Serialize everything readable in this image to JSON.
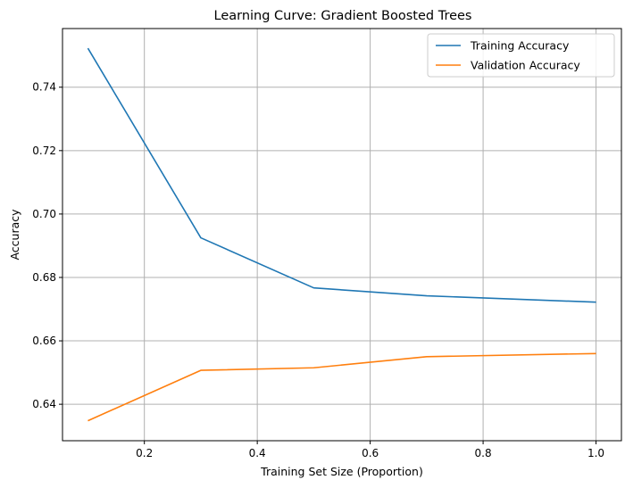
{
  "chart_data": {
    "type": "line",
    "title": "Learning Curve: Gradient Boosted Trees",
    "xlabel": "Training Set Size (Proportion)",
    "ylabel": "Accuracy",
    "xlim": [
      0.055,
      1.045
    ],
    "ylim": [
      0.6285,
      0.7585
    ],
    "xticks": [
      0.2,
      0.4,
      0.6,
      0.8,
      1.0
    ],
    "xtick_labels": [
      "0.2",
      "0.4",
      "0.6",
      "0.8",
      "1.0"
    ],
    "yticks": [
      0.64,
      0.66,
      0.68,
      0.7,
      0.72,
      0.74
    ],
    "ytick_labels": [
      "0.64",
      "0.66",
      "0.68",
      "0.70",
      "0.72",
      "0.74"
    ],
    "grid": true,
    "legend_position": "top-right",
    "x": [
      0.1,
      0.3,
      0.5,
      0.7,
      1.0
    ],
    "series": [
      {
        "name": "Training Accuracy",
        "color": "#1f77b4",
        "values": [
          0.7523,
          0.6925,
          0.6767,
          0.6742,
          0.6722
        ]
      },
      {
        "name": "Validation Accuracy",
        "color": "#ff7f0e",
        "values": [
          0.6348,
          0.6507,
          0.6515,
          0.655,
          0.656
        ]
      }
    ]
  }
}
